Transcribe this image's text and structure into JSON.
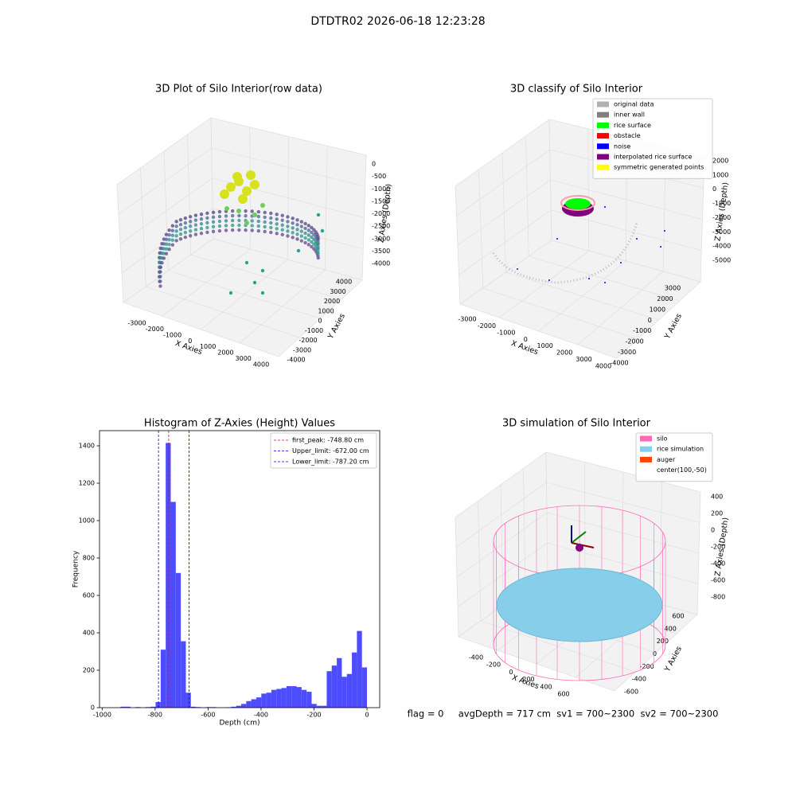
{
  "suptitle": "DTDTR02 2026-06-18 12:23:28",
  "status_line": "flag = 0     avgDepth = 717 cm  sv1 = 700~2300  sv2 = 700~2300",
  "chart_data": [
    {
      "type": "scatter3d",
      "title": "3D Plot of Silo Interior(row data)",
      "xlabel": "X Axies",
      "ylabel": "Y Axies",
      "zlabel": "Z Axies (Depth)",
      "xticks": [
        -3000,
        -2000,
        -1000,
        0,
        1000,
        2000,
        3000,
        4000
      ],
      "yticks": [
        -4000,
        -3000,
        -2000,
        -1000,
        0,
        1000,
        2000,
        3000,
        4000
      ],
      "zticks": [
        0,
        -500,
        -1000,
        -1500,
        -2000,
        -2500,
        -3000,
        -3500,
        -4000
      ]
    },
    {
      "type": "scatter3d",
      "title": "3D classify of Silo Interior",
      "xlabel": "X Axies",
      "ylabel": "Y Axies",
      "zlabel": "Z Axies (Depth)",
      "xticks": [
        -3000,
        -2000,
        -1000,
        0,
        1000,
        2000,
        3000,
        4000
      ],
      "yticks": [
        -4000,
        -3000,
        -2000,
        -1000,
        0,
        1000,
        2000,
        3000
      ],
      "zticks": [
        2000,
        1000,
        0,
        -1000,
        -2000,
        -3000,
        -4000,
        -5000
      ],
      "legend": [
        {
          "name": "original data",
          "color": "#b0b0b0"
        },
        {
          "name": "inner wall",
          "color": "#808080"
        },
        {
          "name": "rice surface",
          "color": "#00ff00"
        },
        {
          "name": "obstacle",
          "color": "#ff0000"
        },
        {
          "name": "noise",
          "color": "#0000ff"
        },
        {
          "name": "interpolated rice surface",
          "color": "#800080"
        },
        {
          "name": "symmetric generated points",
          "color": "#ffff00"
        }
      ]
    },
    {
      "type": "histogram",
      "title": "Histogram of Z-Axies (Height) Values",
      "xlabel": "Depth (cm)",
      "ylabel": "Frequency",
      "color": "#4d4dff",
      "bins": [
        -950,
        -931,
        -912,
        -893,
        -874,
        -855,
        -836,
        -817,
        -798,
        -779,
        -760,
        -741,
        -722,
        -703,
        -684,
        -665,
        -646,
        -627,
        -608,
        -589,
        -570,
        -551,
        -532,
        -513,
        -494,
        -475,
        -456,
        -437,
        -418,
        -399,
        -380,
        -361,
        -342,
        -323,
        -304,
        -285,
        -266,
        -247,
        -228,
        -209,
        -190,
        -171,
        -152,
        -133,
        -114,
        -95,
        -76,
        -57,
        -38,
        -19,
        0
      ],
      "counts": [
        0,
        5,
        5,
        0,
        3,
        0,
        3,
        5,
        30,
        310,
        1415,
        1100,
        720,
        355,
        80,
        5,
        3,
        0,
        3,
        3,
        0,
        0,
        2,
        5,
        10,
        20,
        35,
        45,
        55,
        75,
        80,
        95,
        100,
        105,
        115,
        115,
        110,
        95,
        85,
        20,
        10,
        10,
        195,
        225,
        265,
        165,
        180,
        295,
        410,
        215
      ],
      "lines": [
        {
          "name": "first_peak: -748.80 cm",
          "value": -748.8,
          "color": "#ff0000"
        },
        {
          "name": "Upper_limit: -672.00 cm",
          "value": -672,
          "color": "#0000ff"
        },
        {
          "name": "Lower_limit: -787.20 cm",
          "value": -787.2,
          "color": "#0000ff"
        }
      ],
      "xlim": [
        -1010,
        48
      ],
      "ylim": [
        0,
        1481
      ],
      "xticks": [
        -1000,
        -800,
        -600,
        -400,
        -200,
        0
      ],
      "yticks": [
        0,
        200,
        400,
        600,
        800,
        1000,
        1200,
        1400
      ],
      "legend_position": "upper right"
    },
    {
      "type": "surface3d",
      "title": "3D simulation of Silo Interior",
      "xlabel": "X Axies",
      "ylabel": "Y Axies",
      "zlabel": "Z Axies (Depth)",
      "xticks": [
        -400,
        -200,
        0,
        200,
        400,
        600
      ],
      "yticks": [
        -600,
        -400,
        -200,
        0,
        200,
        400,
        600
      ],
      "zticks": [
        400,
        200,
        0,
        -200,
        -400,
        -600,
        -800
      ],
      "legend": [
        {
          "name": "silo",
          "color": "#ff69b4"
        },
        {
          "name": "rice simulation",
          "color": "#87ceeb"
        },
        {
          "name": "auger",
          "color": "#ff4500"
        },
        {
          "name": "center(100,-50)"
        }
      ]
    }
  ]
}
